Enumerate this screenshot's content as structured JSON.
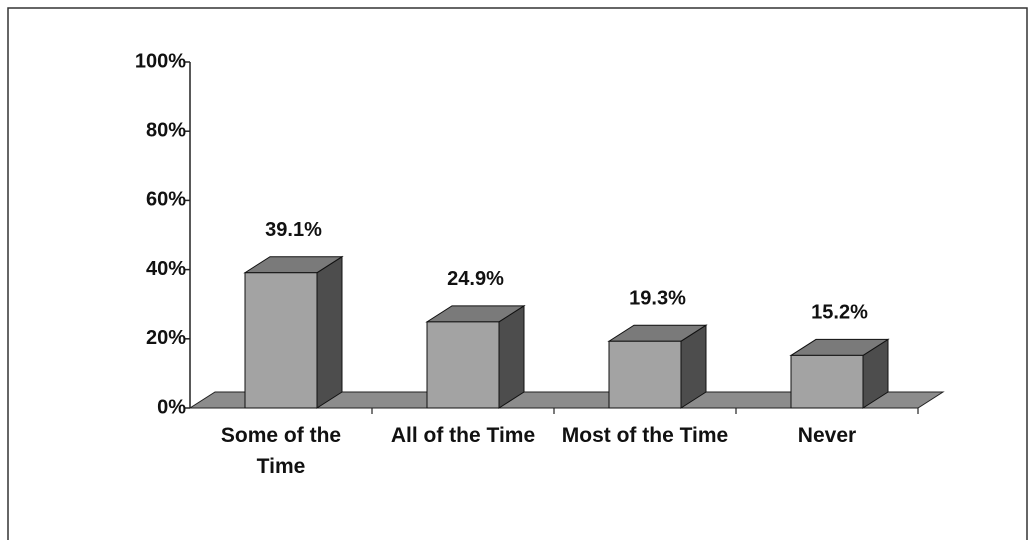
{
  "chart_data": {
    "type": "bar3d",
    "categories": [
      "Some of the Time",
      "All of the Time",
      "Most of the Time",
      "Never"
    ],
    "values": [
      39.1,
      24.9,
      19.3,
      15.2
    ],
    "value_labels": [
      "39.1%",
      "24.9%",
      "19.3%",
      "15.2%"
    ],
    "color": "#a3a3a3",
    "ylim": [
      0,
      100
    ],
    "yticks": [
      {
        "value": 0,
        "label": "0%"
      },
      {
        "value": 20,
        "label": "20%"
      },
      {
        "value": 40,
        "label": "40%"
      },
      {
        "value": 60,
        "label": "60%"
      },
      {
        "value": 80,
        "label": "80%"
      },
      {
        "value": 100,
        "label": "100%"
      }
    ]
  }
}
